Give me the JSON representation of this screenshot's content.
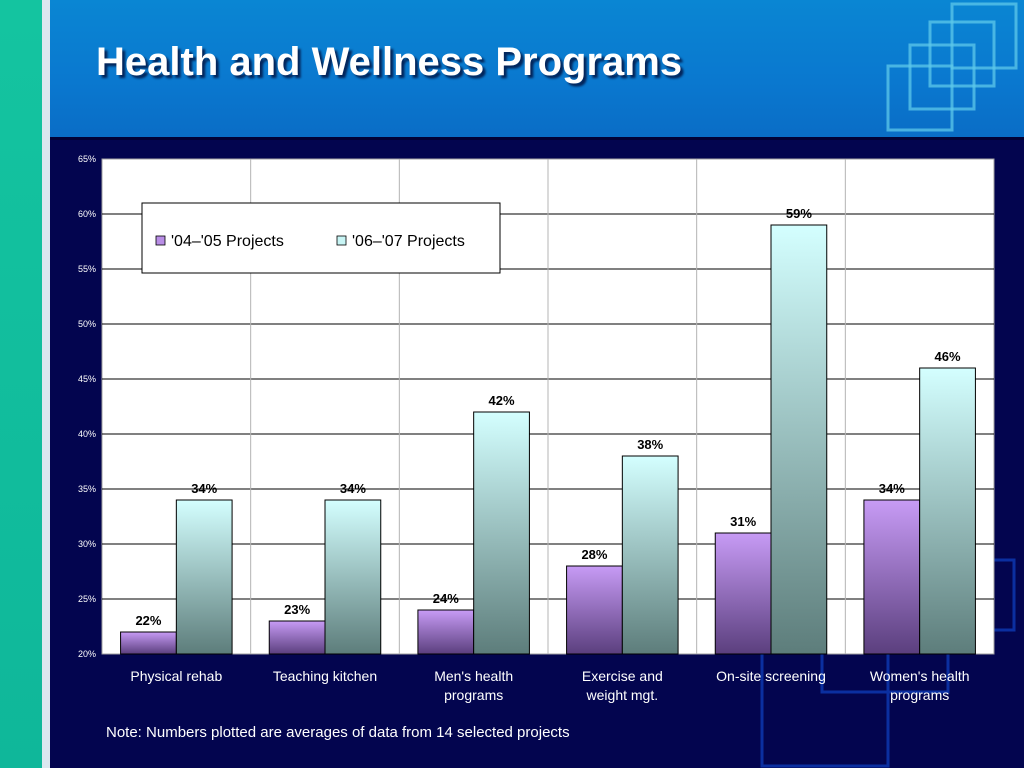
{
  "slide": {
    "title": "Health and Wellness Programs",
    "note": "Note: Numbers plotted are averages of data from 14 selected projects"
  },
  "colors": {
    "background": "#03054f",
    "header": "#0a78cf",
    "accent_green": "#14c4a0",
    "series_1": "#b98ee6",
    "series_2": "#c8f5f5"
  },
  "chart_data": {
    "type": "bar",
    "categories": [
      [
        "Physical rehab"
      ],
      [
        "Teaching kitchen"
      ],
      [
        "Men's health",
        "programs"
      ],
      [
        "Exercise and",
        "weight mgt."
      ],
      [
        "On-site screening"
      ],
      [
        "Women's health",
        "programs"
      ]
    ],
    "series": [
      {
        "name": "'04–'05 Projects",
        "values": [
          22,
          23,
          24,
          28,
          31,
          34
        ],
        "labels": [
          "22%",
          "23%",
          "24%",
          "28%",
          "31%",
          "34%"
        ]
      },
      {
        "name": "'06–'07 Projects",
        "values": [
          34,
          34,
          42,
          38,
          59,
          46
        ],
        "labels": [
          "34%",
          "34%",
          "42%",
          "38%",
          "59%",
          "46%"
        ]
      }
    ],
    "yticks": [
      {
        "value": 20,
        "label": "20%"
      },
      {
        "value": 25,
        "label": "25%"
      },
      {
        "value": 30,
        "label": "30%"
      },
      {
        "value": 35,
        "label": "35%"
      },
      {
        "value": 40,
        "label": "40%"
      },
      {
        "value": 45,
        "label": "45%"
      },
      {
        "value": 50,
        "label": "50%"
      },
      {
        "value": 55,
        "label": "55%"
      },
      {
        "value": 60,
        "label": "60%"
      },
      {
        "value": 65,
        "label": "65%"
      }
    ],
    "ylim": [
      20,
      65
    ],
    "grid": true,
    "legend_position": "top-left",
    "title": "",
    "xlabel": "",
    "ylabel": ""
  }
}
